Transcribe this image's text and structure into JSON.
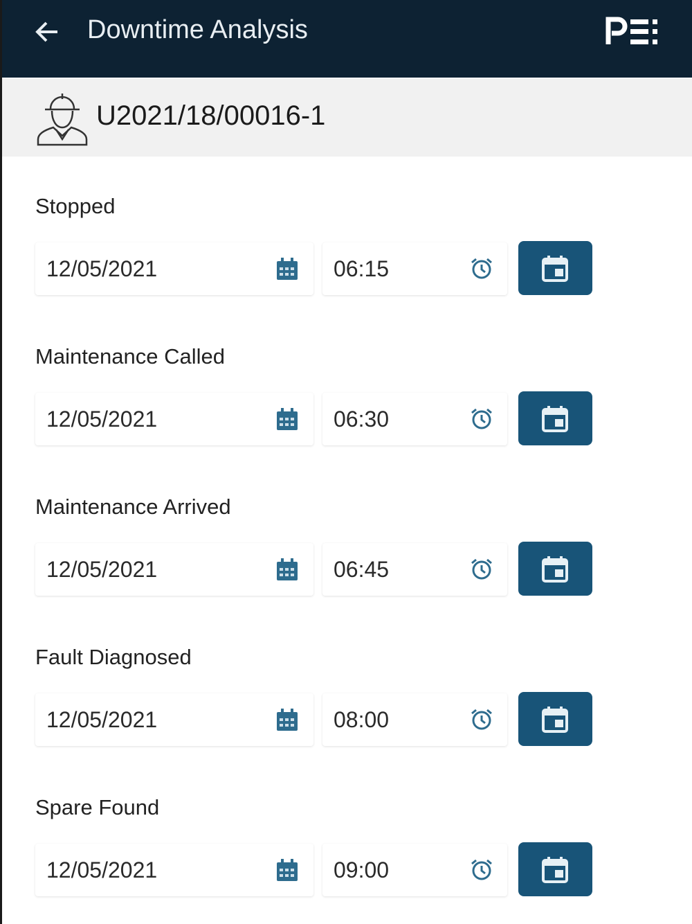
{
  "header": {
    "title": "Downtime Analysis",
    "back_icon": "arrow-left-icon",
    "logo": "PE:"
  },
  "work_order": {
    "number": "U2021/18/00016-1",
    "icon": "worker-hardhat-icon"
  },
  "colors": {
    "appbar": "#0d2233",
    "accent": "#185478",
    "subheader": "#f1f1f1"
  },
  "events": [
    {
      "label": "Stopped",
      "date": "12/05/2021",
      "time": "06:15"
    },
    {
      "label": "Maintenance Called",
      "date": "12/05/2021",
      "time": "06:30"
    },
    {
      "label": "Maintenance Arrived",
      "date": "12/05/2021",
      "time": "06:45"
    },
    {
      "label": "Fault Diagnosed",
      "date": "12/05/2021",
      "time": "08:00"
    },
    {
      "label": "Spare Found",
      "date": "12/05/2021",
      "time": "09:00"
    }
  ]
}
